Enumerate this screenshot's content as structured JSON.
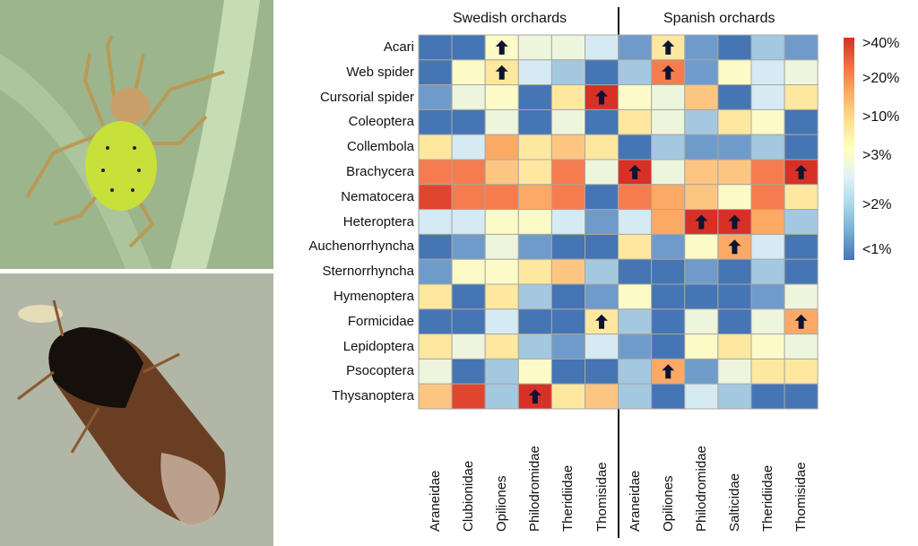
{
  "chart_data": {
    "type": "heatmap",
    "groups": [
      {
        "name": "Swedish orchards",
        "columns": [
          "Araneidae",
          "Clubionidae",
          "Opiliones",
          "Philodromidae",
          "Theridiidae",
          "Thomisidae"
        ]
      },
      {
        "name": "Spanish orchards",
        "columns": [
          "Araneidae",
          "Opiliones",
          "Philodromidae",
          "Salticidae",
          "Theridiidae",
          "Thomisidae"
        ]
      }
    ],
    "rows": [
      "Acari",
      "Web spider",
      "Cursorial spider",
      "Coleoptera",
      "Collembola",
      "Brachycera",
      "Nematocera",
      "Heteroptera",
      "Auchenorrhyncha",
      "Sternorrhyncha",
      "Hymenoptera",
      "Formicidae",
      "Lepidoptera",
      "Psocoptera",
      "Thysanoptera"
    ],
    "color_levels": [
      "#4575b4",
      "#6f9bcb",
      "#a5c8e1",
      "#d6eaf4",
      "#eef5dd",
      "#fcfbc8",
      "#fee8a0",
      "#fdc582",
      "#fca966",
      "#f57c4e",
      "#e0452f",
      "#d73027"
    ],
    "values": [
      [
        0,
        0,
        5,
        4,
        4,
        3,
        1,
        6,
        1,
        0,
        2,
        1
      ],
      [
        0,
        5,
        6,
        3,
        2,
        0,
        2,
        9,
        1,
        5,
        3,
        4
      ],
      [
        1,
        4,
        5,
        0,
        6,
        11,
        5,
        4,
        7,
        0,
        3,
        6
      ],
      [
        0,
        0,
        4,
        0,
        4,
        0,
        6,
        4,
        2,
        6,
        5,
        0
      ],
      [
        6,
        3,
        8,
        6,
        7,
        6,
        0,
        2,
        1,
        1,
        2,
        0
      ],
      [
        9,
        9,
        7,
        6,
        9,
        4,
        11,
        4,
        7,
        7,
        9,
        11
      ],
      [
        10,
        9,
        9,
        8,
        9,
        0,
        9,
        8,
        7,
        5,
        9,
        6
      ],
      [
        3,
        3,
        5,
        5,
        3,
        1,
        3,
        8,
        11,
        11,
        8,
        2
      ],
      [
        0,
        1,
        4,
        1,
        0,
        0,
        6,
        1,
        5,
        8,
        3,
        0
      ],
      [
        1,
        5,
        5,
        6,
        7,
        2,
        0,
        0,
        1,
        0,
        2,
        0
      ],
      [
        6,
        0,
        6,
        2,
        0,
        1,
        5,
        0,
        0,
        0,
        1,
        4
      ],
      [
        0,
        0,
        3,
        0,
        0,
        6,
        2,
        0,
        4,
        0,
        4,
        8
      ],
      [
        6,
        4,
        6,
        2,
        1,
        3,
        1,
        0,
        5,
        6,
        5,
        4
      ],
      [
        4,
        0,
        2,
        5,
        0,
        0,
        2,
        8,
        1,
        4,
        6,
        6
      ],
      [
        7,
        10,
        2,
        11,
        6,
        7,
        2,
        0,
        3,
        2,
        0,
        0
      ]
    ],
    "arrows": [
      [
        0,
        2
      ],
      [
        1,
        2
      ],
      [
        2,
        5
      ],
      [
        14,
        3
      ],
      [
        11,
        5
      ],
      [
        0,
        7
      ],
      [
        1,
        7
      ],
      [
        5,
        6
      ],
      [
        5,
        11
      ],
      [
        7,
        8
      ],
      [
        7,
        9
      ],
      [
        8,
        9
      ],
      [
        11,
        11
      ],
      [
        13,
        7
      ]
    ],
    "legend": {
      "position": "right",
      "labels": [
        ">40%",
        ">20%",
        ">10%",
        ">3%",
        ">2%",
        "<1%"
      ]
    }
  }
}
